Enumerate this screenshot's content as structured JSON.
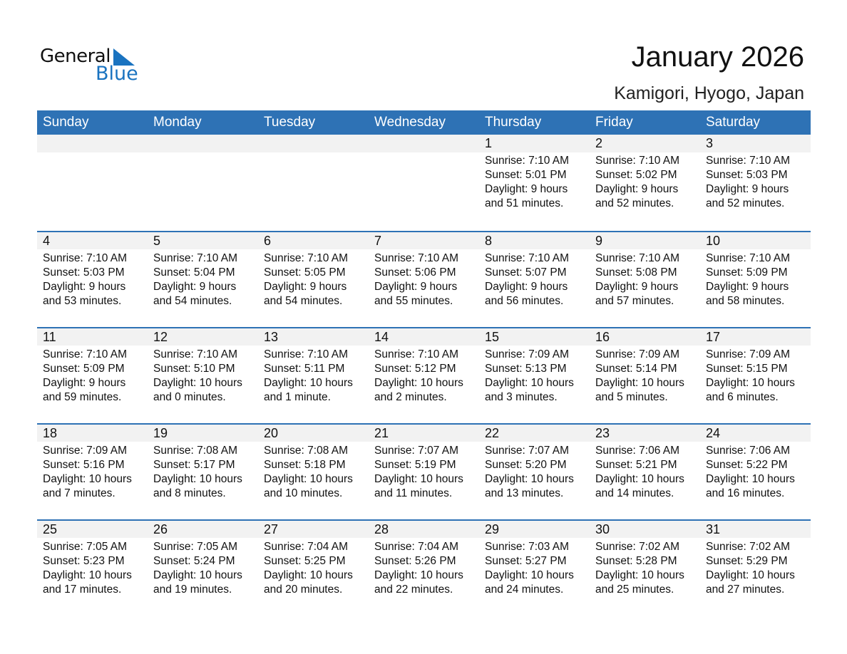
{
  "logo": {
    "line1": "General",
    "line2": "Blue"
  },
  "header": {
    "title": "January 2026",
    "location": "Kamigori, Hyogo, Japan"
  },
  "colors": {
    "accent": "#2e72b5",
    "logo_blue": "#1a73c0",
    "band": "#f2f2f2"
  },
  "weekdays": [
    "Sunday",
    "Monday",
    "Tuesday",
    "Wednesday",
    "Thursday",
    "Friday",
    "Saturday"
  ],
  "weeks": [
    [
      null,
      null,
      null,
      null,
      {
        "day": "1",
        "sunrise": "Sunrise: 7:10 AM",
        "sunset": "Sunset: 5:01 PM",
        "daylight1": "Daylight: 9 hours",
        "daylight2": "and 51 minutes."
      },
      {
        "day": "2",
        "sunrise": "Sunrise: 7:10 AM",
        "sunset": "Sunset: 5:02 PM",
        "daylight1": "Daylight: 9 hours",
        "daylight2": "and 52 minutes."
      },
      {
        "day": "3",
        "sunrise": "Sunrise: 7:10 AM",
        "sunset": "Sunset: 5:03 PM",
        "daylight1": "Daylight: 9 hours",
        "daylight2": "and 52 minutes."
      }
    ],
    [
      {
        "day": "4",
        "sunrise": "Sunrise: 7:10 AM",
        "sunset": "Sunset: 5:03 PM",
        "daylight1": "Daylight: 9 hours",
        "daylight2": "and 53 minutes."
      },
      {
        "day": "5",
        "sunrise": "Sunrise: 7:10 AM",
        "sunset": "Sunset: 5:04 PM",
        "daylight1": "Daylight: 9 hours",
        "daylight2": "and 54 minutes."
      },
      {
        "day": "6",
        "sunrise": "Sunrise: 7:10 AM",
        "sunset": "Sunset: 5:05 PM",
        "daylight1": "Daylight: 9 hours",
        "daylight2": "and 54 minutes."
      },
      {
        "day": "7",
        "sunrise": "Sunrise: 7:10 AM",
        "sunset": "Sunset: 5:06 PM",
        "daylight1": "Daylight: 9 hours",
        "daylight2": "and 55 minutes."
      },
      {
        "day": "8",
        "sunrise": "Sunrise: 7:10 AM",
        "sunset": "Sunset: 5:07 PM",
        "daylight1": "Daylight: 9 hours",
        "daylight2": "and 56 minutes."
      },
      {
        "day": "9",
        "sunrise": "Sunrise: 7:10 AM",
        "sunset": "Sunset: 5:08 PM",
        "daylight1": "Daylight: 9 hours",
        "daylight2": "and 57 minutes."
      },
      {
        "day": "10",
        "sunrise": "Sunrise: 7:10 AM",
        "sunset": "Sunset: 5:09 PM",
        "daylight1": "Daylight: 9 hours",
        "daylight2": "and 58 minutes."
      }
    ],
    [
      {
        "day": "11",
        "sunrise": "Sunrise: 7:10 AM",
        "sunset": "Sunset: 5:09 PM",
        "daylight1": "Daylight: 9 hours",
        "daylight2": "and 59 minutes."
      },
      {
        "day": "12",
        "sunrise": "Sunrise: 7:10 AM",
        "sunset": "Sunset: 5:10 PM",
        "daylight1": "Daylight: 10 hours",
        "daylight2": "and 0 minutes."
      },
      {
        "day": "13",
        "sunrise": "Sunrise: 7:10 AM",
        "sunset": "Sunset: 5:11 PM",
        "daylight1": "Daylight: 10 hours",
        "daylight2": "and 1 minute."
      },
      {
        "day": "14",
        "sunrise": "Sunrise: 7:10 AM",
        "sunset": "Sunset: 5:12 PM",
        "daylight1": "Daylight: 10 hours",
        "daylight2": "and 2 minutes."
      },
      {
        "day": "15",
        "sunrise": "Sunrise: 7:09 AM",
        "sunset": "Sunset: 5:13 PM",
        "daylight1": "Daylight: 10 hours",
        "daylight2": "and 3 minutes."
      },
      {
        "day": "16",
        "sunrise": "Sunrise: 7:09 AM",
        "sunset": "Sunset: 5:14 PM",
        "daylight1": "Daylight: 10 hours",
        "daylight2": "and 5 minutes."
      },
      {
        "day": "17",
        "sunrise": "Sunrise: 7:09 AM",
        "sunset": "Sunset: 5:15 PM",
        "daylight1": "Daylight: 10 hours",
        "daylight2": "and 6 minutes."
      }
    ],
    [
      {
        "day": "18",
        "sunrise": "Sunrise: 7:09 AM",
        "sunset": "Sunset: 5:16 PM",
        "daylight1": "Daylight: 10 hours",
        "daylight2": "and 7 minutes."
      },
      {
        "day": "19",
        "sunrise": "Sunrise: 7:08 AM",
        "sunset": "Sunset: 5:17 PM",
        "daylight1": "Daylight: 10 hours",
        "daylight2": "and 8 minutes."
      },
      {
        "day": "20",
        "sunrise": "Sunrise: 7:08 AM",
        "sunset": "Sunset: 5:18 PM",
        "daylight1": "Daylight: 10 hours",
        "daylight2": "and 10 minutes."
      },
      {
        "day": "21",
        "sunrise": "Sunrise: 7:07 AM",
        "sunset": "Sunset: 5:19 PM",
        "daylight1": "Daylight: 10 hours",
        "daylight2": "and 11 minutes."
      },
      {
        "day": "22",
        "sunrise": "Sunrise: 7:07 AM",
        "sunset": "Sunset: 5:20 PM",
        "daylight1": "Daylight: 10 hours",
        "daylight2": "and 13 minutes."
      },
      {
        "day": "23",
        "sunrise": "Sunrise: 7:06 AM",
        "sunset": "Sunset: 5:21 PM",
        "daylight1": "Daylight: 10 hours",
        "daylight2": "and 14 minutes."
      },
      {
        "day": "24",
        "sunrise": "Sunrise: 7:06 AM",
        "sunset": "Sunset: 5:22 PM",
        "daylight1": "Daylight: 10 hours",
        "daylight2": "and 16 minutes."
      }
    ],
    [
      {
        "day": "25",
        "sunrise": "Sunrise: 7:05 AM",
        "sunset": "Sunset: 5:23 PM",
        "daylight1": "Daylight: 10 hours",
        "daylight2": "and 17 minutes."
      },
      {
        "day": "26",
        "sunrise": "Sunrise: 7:05 AM",
        "sunset": "Sunset: 5:24 PM",
        "daylight1": "Daylight: 10 hours",
        "daylight2": "and 19 minutes."
      },
      {
        "day": "27",
        "sunrise": "Sunrise: 7:04 AM",
        "sunset": "Sunset: 5:25 PM",
        "daylight1": "Daylight: 10 hours",
        "daylight2": "and 20 minutes."
      },
      {
        "day": "28",
        "sunrise": "Sunrise: 7:04 AM",
        "sunset": "Sunset: 5:26 PM",
        "daylight1": "Daylight: 10 hours",
        "daylight2": "and 22 minutes."
      },
      {
        "day": "29",
        "sunrise": "Sunrise: 7:03 AM",
        "sunset": "Sunset: 5:27 PM",
        "daylight1": "Daylight: 10 hours",
        "daylight2": "and 24 minutes."
      },
      {
        "day": "30",
        "sunrise": "Sunrise: 7:02 AM",
        "sunset": "Sunset: 5:28 PM",
        "daylight1": "Daylight: 10 hours",
        "daylight2": "and 25 minutes."
      },
      {
        "day": "31",
        "sunrise": "Sunrise: 7:02 AM",
        "sunset": "Sunset: 5:29 PM",
        "daylight1": "Daylight: 10 hours",
        "daylight2": "and 27 minutes."
      }
    ]
  ]
}
